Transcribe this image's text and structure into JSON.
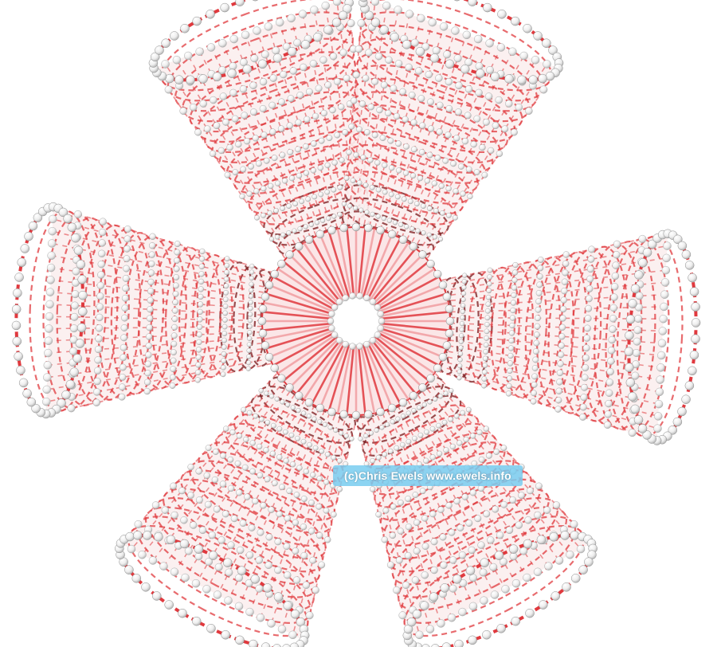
{
  "image": {
    "subject": "carbon nanotube flower",
    "watermark": "(c)Chris Ewels www.ewels.info"
  },
  "colors": {
    "background": "#ffffff",
    "bond": "#e0393e",
    "bond_dark": "#7a1518",
    "atom": "#f4f4f4",
    "atom_shade": "#b9b9b9",
    "watermark_bg": "#78cdf0"
  },
  "petals": [
    {
      "name": "top-left",
      "angle_deg": -110
    },
    {
      "name": "top-right",
      "angle_deg": -70
    },
    {
      "name": "right",
      "angle_deg": 3
    },
    {
      "name": "bottom-right",
      "angle_deg": 62
    },
    {
      "name": "bottom-left",
      "angle_deg": 118
    },
    {
      "name": "left",
      "angle_deg": 182
    }
  ]
}
